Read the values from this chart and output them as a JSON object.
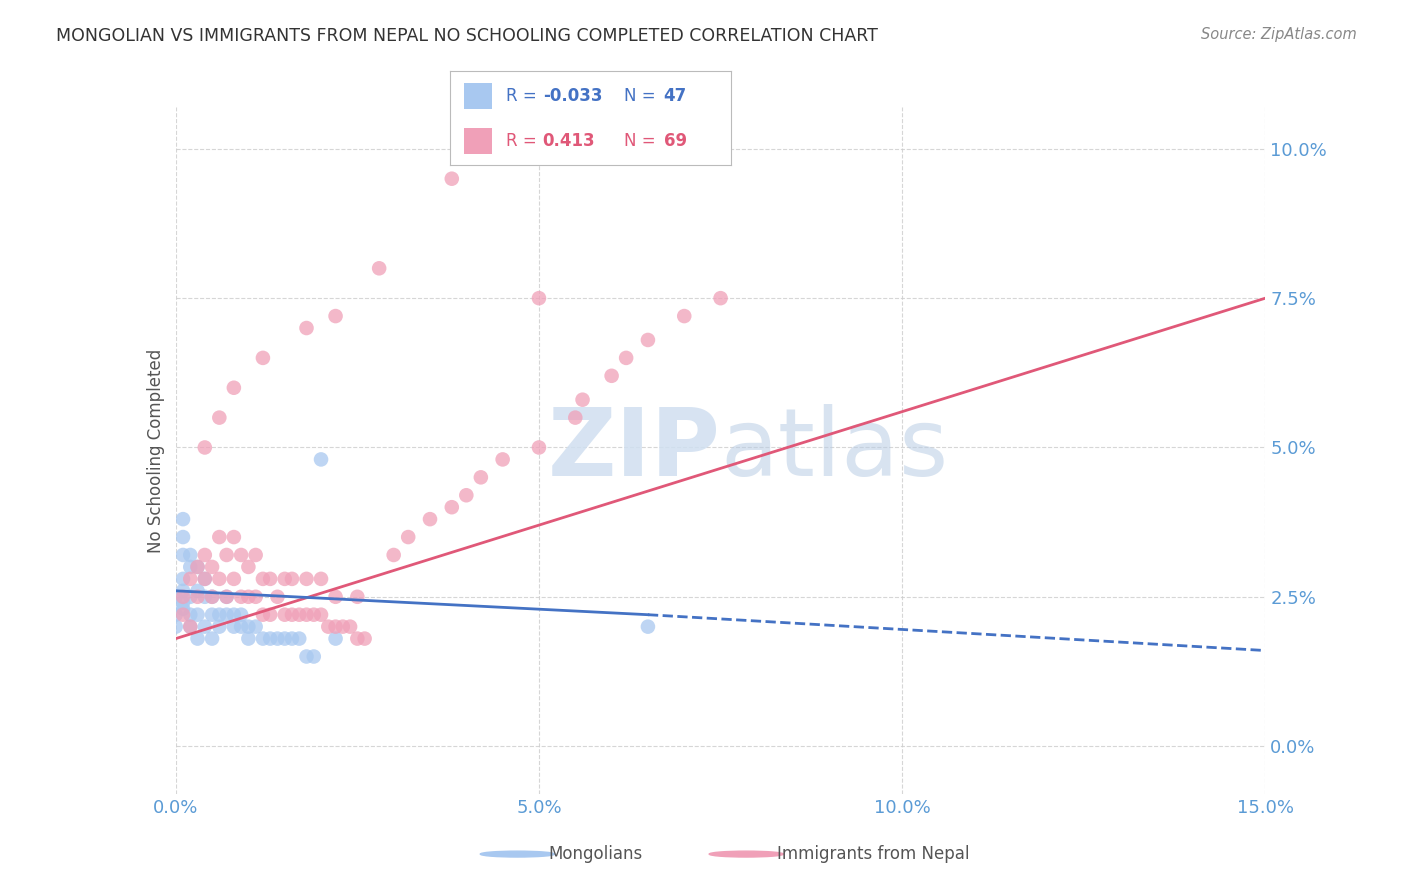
{
  "title": "MONGOLIAN VS IMMIGRANTS FROM NEPAL NO SCHOOLING COMPLETED CORRELATION CHART",
  "source": "Source: ZipAtlas.com",
  "ylabel": "No Schooling Completed",
  "xmin": 0.0,
  "xmax": 0.15,
  "ymin": -0.008,
  "ymax": 0.107,
  "mongolian_R": -0.033,
  "mongolian_N": 47,
  "nepal_R": 0.413,
  "nepal_N": 69,
  "mongolian_color": "#a8c8f0",
  "nepal_color": "#f0a0b8",
  "mongolian_line_color": "#4472c4",
  "nepal_line_color": "#e05878",
  "title_color": "#333333",
  "axis_label_color": "#5b9bd5",
  "watermark_color": "#d0dff0",
  "mong_x": [
    0.0,
    0.0,
    0.0,
    0.001,
    0.001,
    0.001,
    0.001,
    0.001,
    0.001,
    0.001,
    0.002,
    0.002,
    0.002,
    0.002,
    0.002,
    0.003,
    0.003,
    0.003,
    0.003,
    0.004,
    0.004,
    0.004,
    0.005,
    0.005,
    0.005,
    0.006,
    0.006,
    0.007,
    0.007,
    0.008,
    0.008,
    0.009,
    0.009,
    0.01,
    0.01,
    0.011,
    0.012,
    0.013,
    0.014,
    0.015,
    0.016,
    0.017,
    0.018,
    0.019,
    0.02,
    0.022,
    0.065
  ],
  "mong_y": [
    0.02,
    0.025,
    0.022,
    0.023,
    0.024,
    0.026,
    0.028,
    0.032,
    0.035,
    0.038,
    0.02,
    0.022,
    0.025,
    0.03,
    0.032,
    0.018,
    0.022,
    0.026,
    0.03,
    0.02,
    0.025,
    0.028,
    0.018,
    0.022,
    0.025,
    0.02,
    0.022,
    0.022,
    0.025,
    0.02,
    0.022,
    0.02,
    0.022,
    0.018,
    0.02,
    0.02,
    0.018,
    0.018,
    0.018,
    0.018,
    0.018,
    0.018,
    0.015,
    0.015,
    0.048,
    0.018,
    0.02
  ],
  "nep_x": [
    0.001,
    0.001,
    0.002,
    0.002,
    0.003,
    0.003,
    0.004,
    0.004,
    0.005,
    0.005,
    0.006,
    0.006,
    0.007,
    0.007,
    0.008,
    0.008,
    0.009,
    0.009,
    0.01,
    0.01,
    0.011,
    0.011,
    0.012,
    0.012,
    0.013,
    0.013,
    0.014,
    0.015,
    0.015,
    0.016,
    0.016,
    0.017,
    0.018,
    0.018,
    0.019,
    0.02,
    0.02,
    0.021,
    0.022,
    0.022,
    0.023,
    0.024,
    0.025,
    0.025,
    0.026,
    0.03,
    0.032,
    0.035,
    0.038,
    0.04,
    0.042,
    0.045,
    0.05,
    0.055,
    0.056,
    0.06,
    0.062,
    0.065,
    0.07,
    0.075,
    0.004,
    0.006,
    0.008,
    0.012,
    0.018,
    0.022,
    0.028,
    0.038,
    0.05
  ],
  "nep_y": [
    0.022,
    0.025,
    0.02,
    0.028,
    0.025,
    0.03,
    0.028,
    0.032,
    0.025,
    0.03,
    0.028,
    0.035,
    0.025,
    0.032,
    0.028,
    0.035,
    0.025,
    0.032,
    0.025,
    0.03,
    0.025,
    0.032,
    0.022,
    0.028,
    0.022,
    0.028,
    0.025,
    0.022,
    0.028,
    0.022,
    0.028,
    0.022,
    0.022,
    0.028,
    0.022,
    0.022,
    0.028,
    0.02,
    0.02,
    0.025,
    0.02,
    0.02,
    0.018,
    0.025,
    0.018,
    0.032,
    0.035,
    0.038,
    0.04,
    0.042,
    0.045,
    0.048,
    0.05,
    0.055,
    0.058,
    0.062,
    0.065,
    0.068,
    0.072,
    0.075,
    0.05,
    0.055,
    0.06,
    0.065,
    0.07,
    0.072,
    0.08,
    0.095,
    0.075
  ],
  "mong_line_x0": 0.0,
  "mong_line_x1": 0.065,
  "mong_line_xd": 0.065,
  "mong_line_x_end": 0.15,
  "mong_line_y0": 0.026,
  "mong_line_y1": 0.022,
  "nep_line_x0": 0.0,
  "nep_line_x1": 0.15,
  "nep_line_y0": 0.018,
  "nep_line_y1": 0.075
}
